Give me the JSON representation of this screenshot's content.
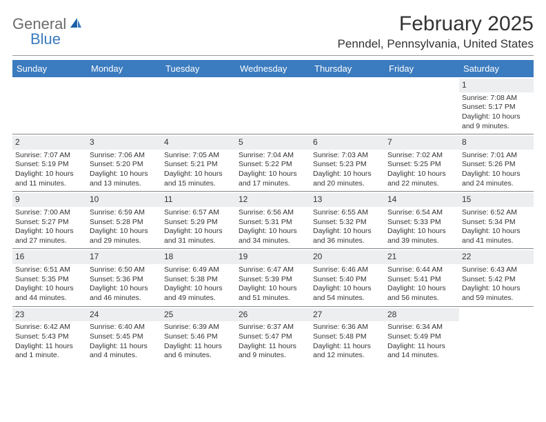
{
  "logo": {
    "text1": "General",
    "text2": "Blue"
  },
  "title": "February 2025",
  "location": "Penndel, Pennsylvania, United States",
  "header_bg": "#3b7bbf",
  "daynum_bg": "#eceef0",
  "days_of_week": [
    "Sunday",
    "Monday",
    "Tuesday",
    "Wednesday",
    "Thursday",
    "Friday",
    "Saturday"
  ],
  "weeks": [
    [
      null,
      null,
      null,
      null,
      null,
      null,
      {
        "n": "1",
        "sunrise": "Sunrise: 7:08 AM",
        "sunset": "Sunset: 5:17 PM",
        "daylight1": "Daylight: 10 hours",
        "daylight2": "and 9 minutes."
      }
    ],
    [
      {
        "n": "2",
        "sunrise": "Sunrise: 7:07 AM",
        "sunset": "Sunset: 5:19 PM",
        "daylight1": "Daylight: 10 hours",
        "daylight2": "and 11 minutes."
      },
      {
        "n": "3",
        "sunrise": "Sunrise: 7:06 AM",
        "sunset": "Sunset: 5:20 PM",
        "daylight1": "Daylight: 10 hours",
        "daylight2": "and 13 minutes."
      },
      {
        "n": "4",
        "sunrise": "Sunrise: 7:05 AM",
        "sunset": "Sunset: 5:21 PM",
        "daylight1": "Daylight: 10 hours",
        "daylight2": "and 15 minutes."
      },
      {
        "n": "5",
        "sunrise": "Sunrise: 7:04 AM",
        "sunset": "Sunset: 5:22 PM",
        "daylight1": "Daylight: 10 hours",
        "daylight2": "and 17 minutes."
      },
      {
        "n": "6",
        "sunrise": "Sunrise: 7:03 AM",
        "sunset": "Sunset: 5:23 PM",
        "daylight1": "Daylight: 10 hours",
        "daylight2": "and 20 minutes."
      },
      {
        "n": "7",
        "sunrise": "Sunrise: 7:02 AM",
        "sunset": "Sunset: 5:25 PM",
        "daylight1": "Daylight: 10 hours",
        "daylight2": "and 22 minutes."
      },
      {
        "n": "8",
        "sunrise": "Sunrise: 7:01 AM",
        "sunset": "Sunset: 5:26 PM",
        "daylight1": "Daylight: 10 hours",
        "daylight2": "and 24 minutes."
      }
    ],
    [
      {
        "n": "9",
        "sunrise": "Sunrise: 7:00 AM",
        "sunset": "Sunset: 5:27 PM",
        "daylight1": "Daylight: 10 hours",
        "daylight2": "and 27 minutes."
      },
      {
        "n": "10",
        "sunrise": "Sunrise: 6:59 AM",
        "sunset": "Sunset: 5:28 PM",
        "daylight1": "Daylight: 10 hours",
        "daylight2": "and 29 minutes."
      },
      {
        "n": "11",
        "sunrise": "Sunrise: 6:57 AM",
        "sunset": "Sunset: 5:29 PM",
        "daylight1": "Daylight: 10 hours",
        "daylight2": "and 31 minutes."
      },
      {
        "n": "12",
        "sunrise": "Sunrise: 6:56 AM",
        "sunset": "Sunset: 5:31 PM",
        "daylight1": "Daylight: 10 hours",
        "daylight2": "and 34 minutes."
      },
      {
        "n": "13",
        "sunrise": "Sunrise: 6:55 AM",
        "sunset": "Sunset: 5:32 PM",
        "daylight1": "Daylight: 10 hours",
        "daylight2": "and 36 minutes."
      },
      {
        "n": "14",
        "sunrise": "Sunrise: 6:54 AM",
        "sunset": "Sunset: 5:33 PM",
        "daylight1": "Daylight: 10 hours",
        "daylight2": "and 39 minutes."
      },
      {
        "n": "15",
        "sunrise": "Sunrise: 6:52 AM",
        "sunset": "Sunset: 5:34 PM",
        "daylight1": "Daylight: 10 hours",
        "daylight2": "and 41 minutes."
      }
    ],
    [
      {
        "n": "16",
        "sunrise": "Sunrise: 6:51 AM",
        "sunset": "Sunset: 5:35 PM",
        "daylight1": "Daylight: 10 hours",
        "daylight2": "and 44 minutes."
      },
      {
        "n": "17",
        "sunrise": "Sunrise: 6:50 AM",
        "sunset": "Sunset: 5:36 PM",
        "daylight1": "Daylight: 10 hours",
        "daylight2": "and 46 minutes."
      },
      {
        "n": "18",
        "sunrise": "Sunrise: 6:49 AM",
        "sunset": "Sunset: 5:38 PM",
        "daylight1": "Daylight: 10 hours",
        "daylight2": "and 49 minutes."
      },
      {
        "n": "19",
        "sunrise": "Sunrise: 6:47 AM",
        "sunset": "Sunset: 5:39 PM",
        "daylight1": "Daylight: 10 hours",
        "daylight2": "and 51 minutes."
      },
      {
        "n": "20",
        "sunrise": "Sunrise: 6:46 AM",
        "sunset": "Sunset: 5:40 PM",
        "daylight1": "Daylight: 10 hours",
        "daylight2": "and 54 minutes."
      },
      {
        "n": "21",
        "sunrise": "Sunrise: 6:44 AM",
        "sunset": "Sunset: 5:41 PM",
        "daylight1": "Daylight: 10 hours",
        "daylight2": "and 56 minutes."
      },
      {
        "n": "22",
        "sunrise": "Sunrise: 6:43 AM",
        "sunset": "Sunset: 5:42 PM",
        "daylight1": "Daylight: 10 hours",
        "daylight2": "and 59 minutes."
      }
    ],
    [
      {
        "n": "23",
        "sunrise": "Sunrise: 6:42 AM",
        "sunset": "Sunset: 5:43 PM",
        "daylight1": "Daylight: 11 hours",
        "daylight2": "and 1 minute."
      },
      {
        "n": "24",
        "sunrise": "Sunrise: 6:40 AM",
        "sunset": "Sunset: 5:45 PM",
        "daylight1": "Daylight: 11 hours",
        "daylight2": "and 4 minutes."
      },
      {
        "n": "25",
        "sunrise": "Sunrise: 6:39 AM",
        "sunset": "Sunset: 5:46 PM",
        "daylight1": "Daylight: 11 hours",
        "daylight2": "and 6 minutes."
      },
      {
        "n": "26",
        "sunrise": "Sunrise: 6:37 AM",
        "sunset": "Sunset: 5:47 PM",
        "daylight1": "Daylight: 11 hours",
        "daylight2": "and 9 minutes."
      },
      {
        "n": "27",
        "sunrise": "Sunrise: 6:36 AM",
        "sunset": "Sunset: 5:48 PM",
        "daylight1": "Daylight: 11 hours",
        "daylight2": "and 12 minutes."
      },
      {
        "n": "28",
        "sunrise": "Sunrise: 6:34 AM",
        "sunset": "Sunset: 5:49 PM",
        "daylight1": "Daylight: 11 hours",
        "daylight2": "and 14 minutes."
      },
      null
    ]
  ]
}
